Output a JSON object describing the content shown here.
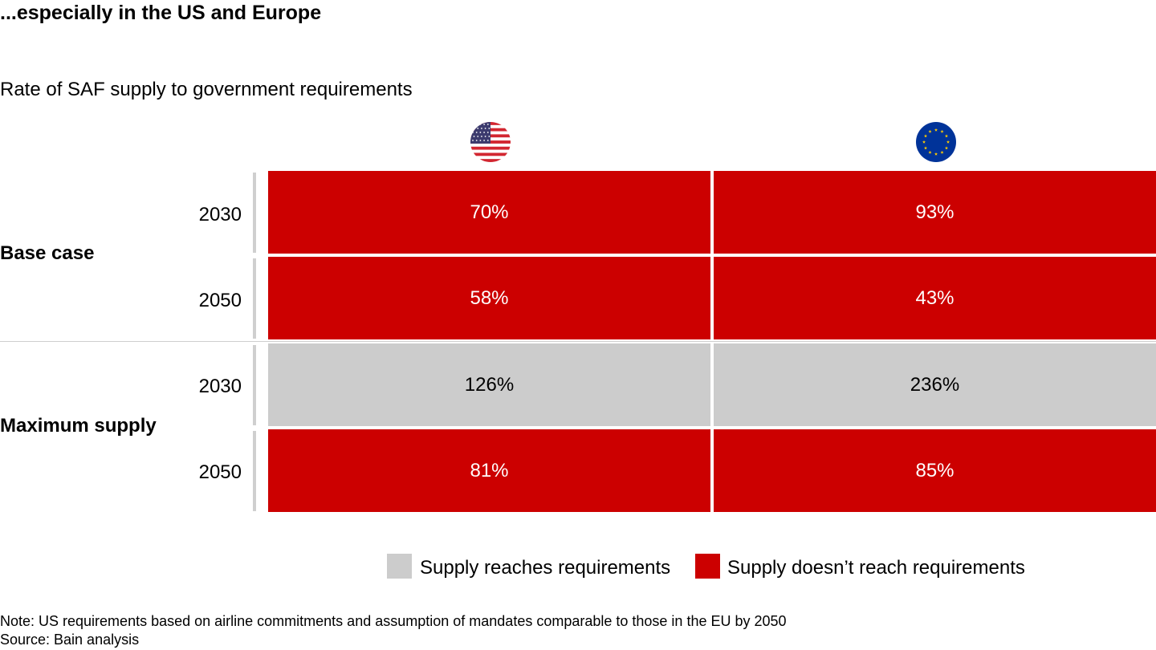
{
  "title": "...especially in the US and Europe",
  "subtitle": "Rate of SAF supply to government requirements",
  "colors": {
    "reaches": "#cccccc",
    "not_reaches": "#cc0000",
    "eu_blue": "#003399",
    "eu_star": "#ffcc00",
    "us_red": "#d22630",
    "us_blue": "#3c3b6e"
  },
  "columns": [
    {
      "name": "US",
      "icon": "us-flag-icon"
    },
    {
      "name": "EU",
      "icon": "eu-flag-icon"
    }
  ],
  "chart_data": {
    "type": "table",
    "title": "Rate of SAF supply to government requirements",
    "columns": [
      "US",
      "EU"
    ],
    "groups": [
      {
        "name": "Base case",
        "rows": [
          {
            "year": "2030",
            "values": [
              "70%",
              "93%"
            ],
            "status": [
              "not_reaches",
              "not_reaches"
            ]
          },
          {
            "year": "2050",
            "values": [
              "58%",
              "43%"
            ],
            "status": [
              "not_reaches",
              "not_reaches"
            ]
          }
        ]
      },
      {
        "name": "Maximum supply",
        "rows": [
          {
            "year": "2030",
            "values": [
              "126%",
              "236%"
            ],
            "status": [
              "reaches",
              "reaches"
            ]
          },
          {
            "year": "2050",
            "values": [
              "81%",
              "85%"
            ],
            "status": [
              "not_reaches",
              "not_reaches"
            ]
          }
        ]
      }
    ]
  },
  "legend": {
    "reaches": "Supply reaches requirements",
    "not_reaches": "Supply doesn’t reach requirements"
  },
  "note": "Note: US requirements based on airline commitments and assumption of mandates comparable to those in the EU by 2050",
  "source": "Source: Bain analysis"
}
